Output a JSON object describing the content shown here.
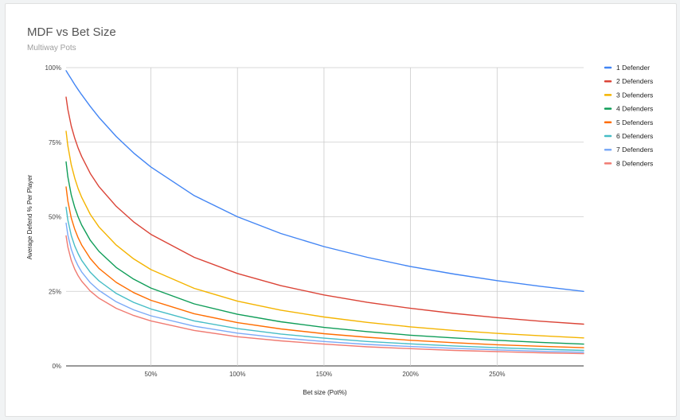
{
  "chart_data": {
    "type": "line",
    "title": "MDF vs Bet Size",
    "subtitle": "Multiway Pots",
    "xlabel": "Bet size (Pot%)",
    "ylabel": "Average Defend % Per Player",
    "xlim": [
      0.01,
      3.0
    ],
    "ylim": [
      0,
      1.0
    ],
    "x_ticks": [
      {
        "value": 0.5,
        "label": "50%"
      },
      {
        "value": 1.0,
        "label": "100%"
      },
      {
        "value": 1.5,
        "label": "150%"
      },
      {
        "value": 2.0,
        "label": "200%"
      },
      {
        "value": 2.5,
        "label": "250%"
      }
    ],
    "y_ticks": [
      {
        "value": 0,
        "label": "0%"
      },
      {
        "value": 0.25,
        "label": "25%"
      },
      {
        "value": 0.5,
        "label": "50%"
      },
      {
        "value": 0.75,
        "label": "75%"
      },
      {
        "value": 1.0,
        "label": "100%"
      }
    ],
    "grid": true,
    "legend_position": "right",
    "x": [
      0.01,
      0.02,
      0.04,
      0.06,
      0.08,
      0.1,
      0.15,
      0.2,
      0.3,
      0.4,
      0.5,
      0.75,
      1.0,
      1.25,
      1.5,
      1.75,
      2.0,
      2.25,
      2.5,
      2.75,
      3.0
    ],
    "series": [
      {
        "name": "1 Defender",
        "color": "#4285f4",
        "values": [
          0.99,
          0.98,
          0.962,
          0.943,
          0.926,
          0.909,
          0.87,
          0.833,
          0.769,
          0.714,
          0.667,
          0.571,
          0.5,
          0.444,
          0.4,
          0.364,
          0.333,
          0.308,
          0.286,
          0.267,
          0.25
        ]
      },
      {
        "name": "2 Defenders",
        "color": "#db4437",
        "values": [
          0.901,
          0.86,
          0.804,
          0.763,
          0.73,
          0.702,
          0.645,
          0.601,
          0.535,
          0.483,
          0.441,
          0.364,
          0.31,
          0.269,
          0.238,
          0.213,
          0.193,
          0.176,
          0.162,
          0.15,
          0.14
        ]
      },
      {
        "name": "3 Defenders",
        "color": "#f4b400",
        "values": [
          0.787,
          0.738,
          0.674,
          0.629,
          0.594,
          0.565,
          0.508,
          0.466,
          0.405,
          0.359,
          0.323,
          0.26,
          0.217,
          0.187,
          0.164,
          0.146,
          0.131,
          0.119,
          0.109,
          0.101,
          0.094
        ]
      },
      {
        "name": "4 Defenders",
        "color": "#0f9d58",
        "values": [
          0.684,
          0.634,
          0.573,
          0.531,
          0.499,
          0.472,
          0.421,
          0.384,
          0.33,
          0.291,
          0.261,
          0.208,
          0.173,
          0.148,
          0.129,
          0.115,
          0.103,
          0.094,
          0.086,
          0.079,
          0.073
        ]
      },
      {
        "name": "5 Defenders",
        "color": "#ff6d00",
        "values": [
          0.6,
          0.553,
          0.496,
          0.458,
          0.429,
          0.405,
          0.36,
          0.327,
          0.28,
          0.246,
          0.22,
          0.175,
          0.145,
          0.124,
          0.108,
          0.096,
          0.086,
          0.078,
          0.071,
          0.066,
          0.061
        ]
      },
      {
        "name": "6 Defenders",
        "color": "#46bdc6",
        "values": [
          0.532,
          0.489,
          0.437,
          0.402,
          0.376,
          0.354,
          0.314,
          0.285,
          0.243,
          0.213,
          0.191,
          0.151,
          0.125,
          0.107,
          0.093,
          0.082,
          0.074,
          0.067,
          0.061,
          0.056,
          0.052
        ]
      },
      {
        "name": "7 Defenders",
        "color": "#7baaf7",
        "values": [
          0.479,
          0.439,
          0.391,
          0.359,
          0.335,
          0.315,
          0.279,
          0.253,
          0.215,
          0.188,
          0.168,
          0.133,
          0.11,
          0.094,
          0.082,
          0.072,
          0.065,
          0.059,
          0.054,
          0.049,
          0.046
        ]
      },
      {
        "name": "8 Defenders",
        "color": "#f07b72",
        "values": [
          0.436,
          0.399,
          0.354,
          0.324,
          0.302,
          0.284,
          0.251,
          0.227,
          0.193,
          0.169,
          0.151,
          0.119,
          0.098,
          0.084,
          0.073,
          0.064,
          0.058,
          0.052,
          0.048,
          0.044,
          0.041
        ]
      }
    ]
  }
}
